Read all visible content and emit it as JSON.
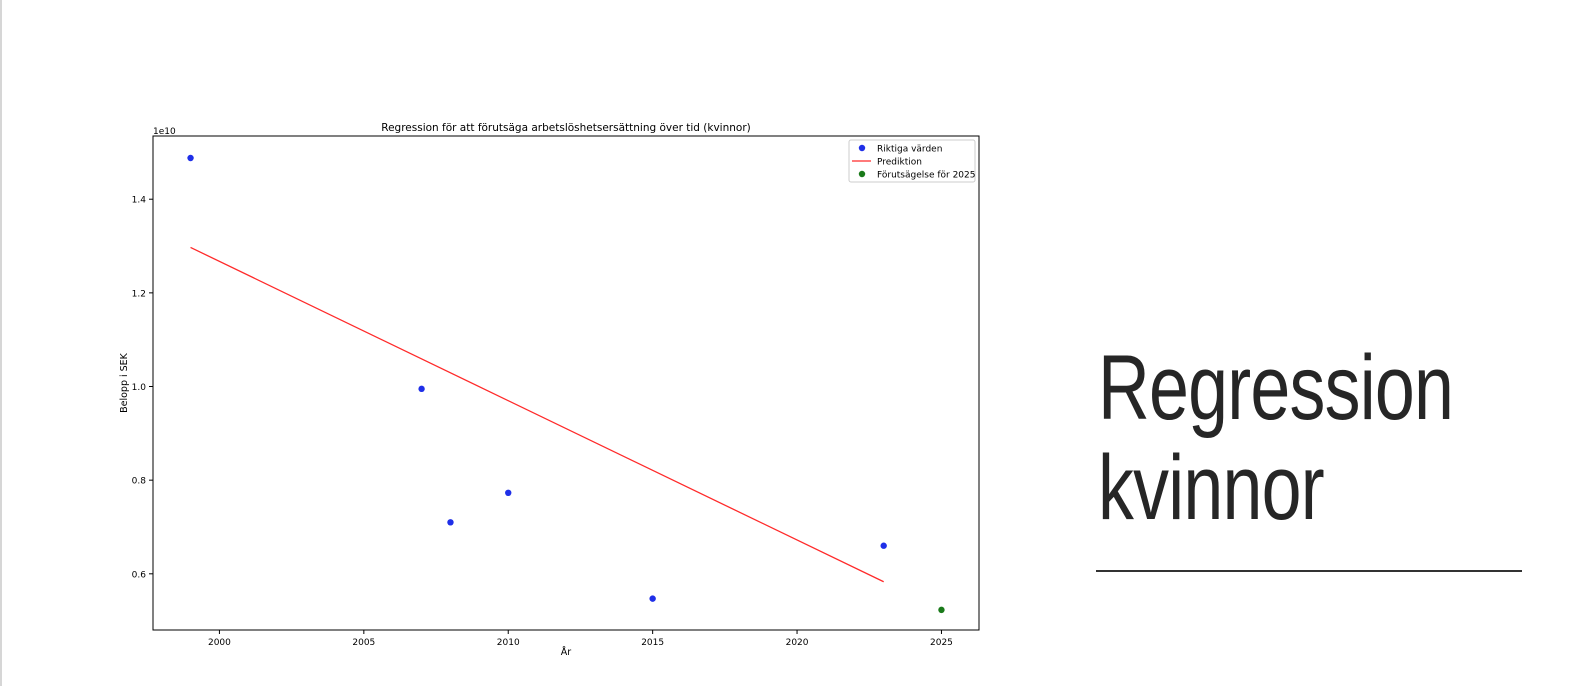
{
  "slide": {
    "title_line1": "Regression",
    "title_line2": "kvinnor"
  },
  "chart_data": {
    "type": "scatter",
    "title": "Regression för att förutsäga arbetslöshetsersättning över tid (kvinnor)",
    "xlabel": "År",
    "ylabel": "Belopp i SEK",
    "y_offset_label": "1e10",
    "xlim": [
      1997.7,
      2026.3
    ],
    "ylim": [
      0.48,
      1.535
    ],
    "xticks": [
      2000,
      2005,
      2010,
      2015,
      2020,
      2025
    ],
    "yticks": [
      0.6,
      0.8,
      1.0,
      1.2,
      1.4
    ],
    "ytick_labels": [
      "0.6",
      "0.8",
      "1.0",
      "1.2",
      "1.4"
    ],
    "grid": false,
    "legend_position": "top-right",
    "series": [
      {
        "name": "Riktiga värden",
        "kind": "scatter",
        "color": "#1f2fe8",
        "x": [
          1999,
          2007,
          2008,
          2010,
          2015,
          2023
        ],
        "y": [
          1.488,
          0.995,
          0.71,
          0.773,
          0.547,
          0.66
        ]
      },
      {
        "name": "Prediktion",
        "kind": "line",
        "color": "#ff2a2a",
        "x": [
          1999,
          2023
        ],
        "y": [
          1.297,
          0.583
        ]
      },
      {
        "name": "Förutsägelse för 2025",
        "kind": "scatter",
        "color": "#1a7a1a",
        "x": [
          2025
        ],
        "y": [
          0.523
        ]
      }
    ]
  }
}
